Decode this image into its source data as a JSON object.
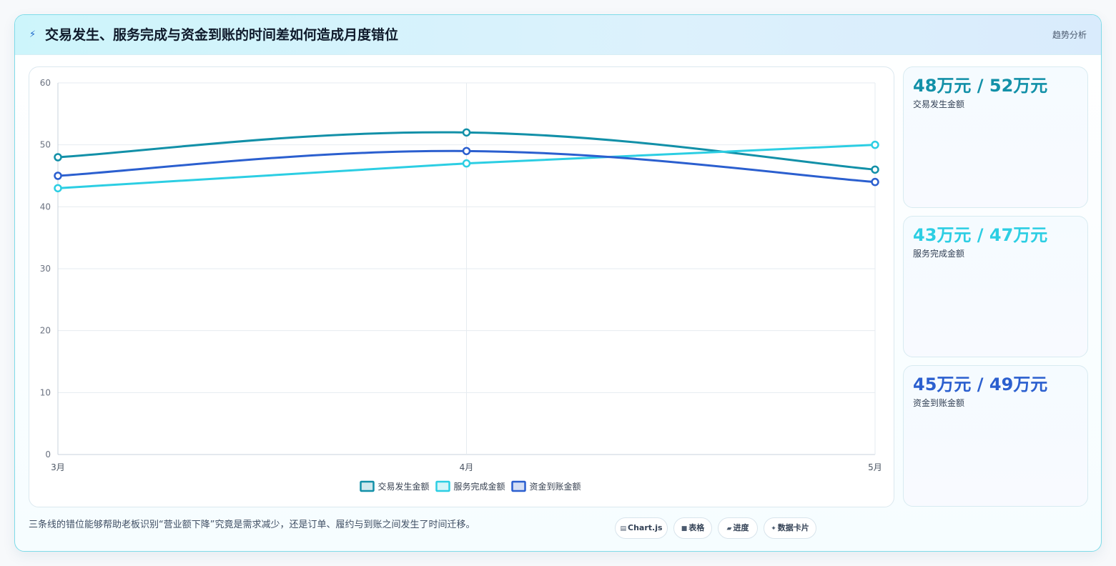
{
  "header": {
    "icon": "lightning-icon",
    "title": "交易发生、服务完成与资金到账的时间差如何造成月度错位",
    "tag": "趋势分析"
  },
  "colors": {
    "series1": "#1290a8",
    "series2": "#2ccee3",
    "series3": "#2b5fcf"
  },
  "chart_data": {
    "type": "line",
    "categories": [
      "3月",
      "4月",
      "5月"
    ],
    "series": [
      {
        "name": "交易发生金额",
        "values": [
          48,
          52,
          46
        ]
      },
      {
        "name": "服务完成金额",
        "values": [
          43,
          47,
          50
        ]
      },
      {
        "name": "资金到账金额",
        "values": [
          45,
          49,
          44
        ]
      }
    ],
    "ylim": [
      0,
      60
    ],
    "yticks": [
      "0",
      "10",
      "20",
      "30",
      "40",
      "50",
      "60"
    ],
    "grid": true,
    "legend": "bottom"
  },
  "cards": [
    {
      "value": "48万元 / 52万元",
      "label": "交易发生金额"
    },
    {
      "value": "43万元 / 47万元",
      "label": "服务完成金额"
    },
    {
      "value": "45万元 / 49万元",
      "label": "资金到账金额"
    }
  ],
  "footer": {
    "note": "三条线的错位能够帮助老板识别“营业额下降”究竟是需求减少，还是订单、履约与到账之间发生了时间迁移。",
    "tags": [
      {
        "icon": "chart-icon",
        "glyph": "▤",
        "label": "Chart.js"
      },
      {
        "icon": "table-icon",
        "glyph": "■",
        "label": "表格"
      },
      {
        "icon": "progress-icon",
        "glyph": "▰",
        "label": "进度"
      },
      {
        "icon": "sparkle-icon",
        "glyph": "✦",
        "label": "数据卡片"
      }
    ]
  }
}
